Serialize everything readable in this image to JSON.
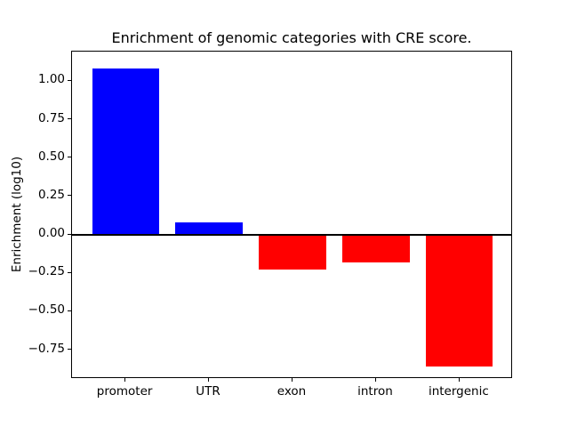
{
  "figure": {
    "title": "Enrichment of genomic categories with CRE score.",
    "ylabel": "Enrichment (log10)"
  },
  "chart_data": {
    "type": "bar",
    "title": "Enrichment of genomic categories with CRE score.",
    "xlabel": "",
    "ylabel": "Enrichment (log10)",
    "categories": [
      "promoter",
      "UTR",
      "exon",
      "intron",
      "intergenic"
    ],
    "values": [
      1.08,
      0.08,
      -0.23,
      -0.18,
      -0.86
    ],
    "bar_colors": [
      "#0000ff",
      "#0000ff",
      "#ff0000",
      "#ff0000",
      "#ff0000"
    ],
    "positive_color": "#0000ff",
    "negative_color": "#ff0000",
    "baseline": 0,
    "baseline_line_color": "#000000",
    "ylim": [
      -0.94,
      1.19
    ],
    "yticks": [
      1.0,
      0.75,
      0.5,
      0.25,
      0.0,
      -0.25,
      -0.5,
      -0.75
    ],
    "ytick_labels": [
      "1.00",
      "0.75",
      "0.50",
      "0.25",
      "0.00",
      "−0.25",
      "−0.50",
      "−0.75"
    ],
    "bar_width_fraction": 0.8,
    "grid": false,
    "legend": null,
    "frame_color": "#000000",
    "background_color": "#ffffff"
  }
}
